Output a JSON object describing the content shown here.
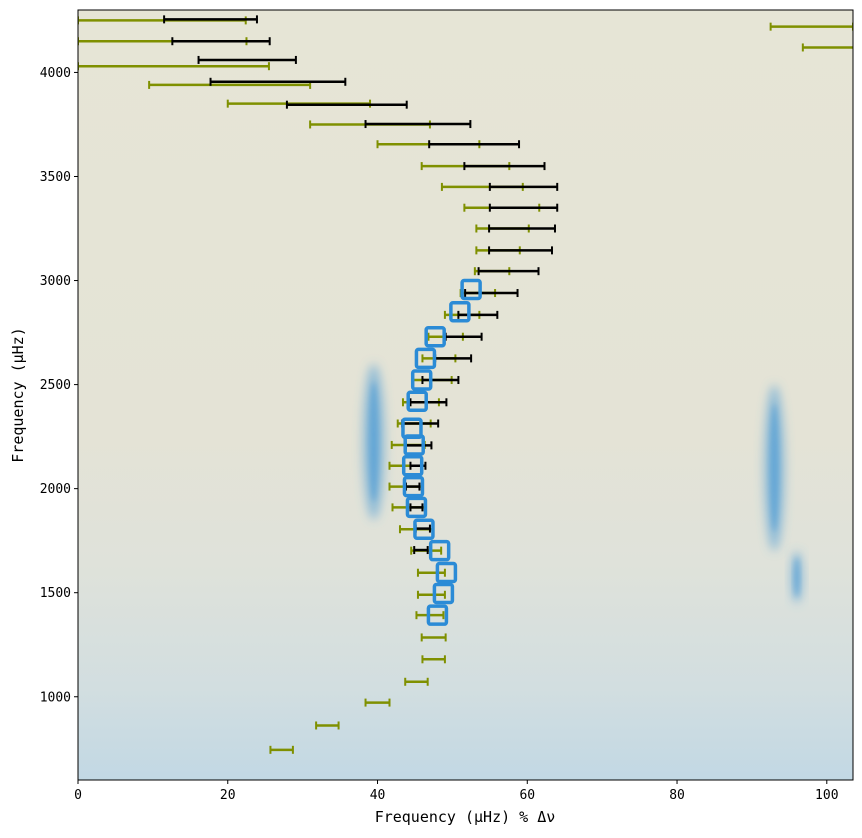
{
  "chart_data": {
    "type": "echelle",
    "xlabel": "Frequency (μHz) % Δν",
    "ylabel": "Frequency (μHz)",
    "xlim": [
      0,
      103.5
    ],
    "ylim": [
      600,
      4300
    ],
    "xticks": [
      0,
      20,
      40,
      60,
      80,
      100
    ],
    "yticks": [
      1000,
      1500,
      2000,
      2500,
      3000,
      3500,
      4000
    ],
    "colors": {
      "background": "#e6e5d6",
      "power": "#4a9ad6",
      "olive_errorbar": "#7f9000",
      "black_errorbar": "#000000",
      "box": "#2b8bd6"
    },
    "power_ridges": [
      {
        "x_center": 39.5,
        "y_range": [
          1850,
          2600
        ],
        "x_spread": 1.5
      },
      {
        "x_center": 93.0,
        "y_range": [
          1700,
          2500
        ],
        "x_spread": 1.4
      },
      {
        "x_center": 96.0,
        "y_range": [
          1450,
          1700
        ],
        "x_spread": 0.8
      }
    ],
    "olive_series": [
      {
        "x": 27.2,
        "xerr_lo": 1.5,
        "xerr_hi": 1.5,
        "y": 745
      },
      {
        "x": 33.3,
        "xerr_lo": 1.5,
        "xerr_hi": 1.5,
        "y": 862
      },
      {
        "x": 40.0,
        "xerr_lo": 1.6,
        "xerr_hi": 1.6,
        "y": 972
      },
      {
        "x": 45.2,
        "xerr_lo": 1.5,
        "xerr_hi": 1.5,
        "y": 1072
      },
      {
        "x": 47.5,
        "xerr_lo": 1.5,
        "xerr_hi": 1.5,
        "y": 1180
      },
      {
        "x": 47.5,
        "xerr_lo": 1.6,
        "xerr_hi": 1.6,
        "y": 1285
      },
      {
        "x": 47.0,
        "xerr_lo": 1.8,
        "xerr_hi": 1.8,
        "y": 1392
      },
      {
        "x": 47.2,
        "xerr_lo": 1.8,
        "xerr_hi": 1.8,
        "y": 1490
      },
      {
        "x": 47.2,
        "xerr_lo": 1.8,
        "xerr_hi": 1.8,
        "y": 1596
      },
      {
        "x": 46.5,
        "xerr_lo": 2.0,
        "xerr_hi": 2.0,
        "y": 1702
      },
      {
        "x": 45.2,
        "xerr_lo": 2.2,
        "xerr_hi": 2.2,
        "y": 1805
      },
      {
        "x": 44.2,
        "xerr_lo": 2.2,
        "xerr_hi": 2.2,
        "y": 1910
      },
      {
        "x": 43.8,
        "xerr_lo": 2.2,
        "xerr_hi": 2.2,
        "y": 2010
      },
      {
        "x": 43.8,
        "xerr_lo": 2.2,
        "xerr_hi": 2.2,
        "y": 2110
      },
      {
        "x": 44.1,
        "xerr_lo": 2.2,
        "xerr_hi": 2.2,
        "y": 2210
      },
      {
        "x": 44.9,
        "xerr_lo": 2.2,
        "xerr_hi": 2.2,
        "y": 2313
      },
      {
        "x": 45.8,
        "xerr_lo": 2.4,
        "xerr_hi": 2.4,
        "y": 2415
      },
      {
        "x": 47.3,
        "xerr_lo": 2.6,
        "xerr_hi": 2.6,
        "y": 2522
      },
      {
        "x": 48.2,
        "xerr_lo": 2.2,
        "xerr_hi": 2.2,
        "y": 2626
      },
      {
        "x": 49.1,
        "xerr_lo": 2.3,
        "xerr_hi": 2.3,
        "y": 2730
      },
      {
        "x": 51.3,
        "xerr_lo": 2.3,
        "xerr_hi": 2.3,
        "y": 2835
      },
      {
        "x": 53.4,
        "xerr_lo": 2.3,
        "xerr_hi": 2.3,
        "y": 2940
      },
      {
        "x": 55.3,
        "xerr_lo": 2.3,
        "xerr_hi": 2.3,
        "y": 3045
      },
      {
        "x": 56.1,
        "xerr_lo": 2.9,
        "xerr_hi": 2.9,
        "y": 3145
      },
      {
        "x": 56.7,
        "xerr_lo": 3.5,
        "xerr_hi": 3.5,
        "y": 3250
      },
      {
        "x": 56.6,
        "xerr_lo": 5.0,
        "xerr_hi": 5.0,
        "y": 3350
      },
      {
        "x": 56.8,
        "xerr_lo": 8.2,
        "xerr_hi": 2.6,
        "y": 3450
      },
      {
        "x": 57.0,
        "xerr_lo": 11.1,
        "xerr_hi": 0.6,
        "y": 3550
      },
      {
        "x": 47.0,
        "xerr_lo": 7.0,
        "xerr_hi": 6.6,
        "y": 3655
      },
      {
        "x": 42.0,
        "xerr_lo": 11.0,
        "xerr_hi": 5.0,
        "y": 3750
      },
      {
        "x": 30.0,
        "xerr_lo": 10.0,
        "xerr_hi": 9.0,
        "y": 3850
      },
      {
        "x": 20.0,
        "xerr_lo": 10.5,
        "xerr_hi": 11.0,
        "y": 3940
      },
      {
        "x": 13.0,
        "xerr_lo": 13.0,
        "xerr_hi": 12.5,
        "y": 4030
      },
      {
        "x": 11.5,
        "xerr_lo": 11.5,
        "xerr_hi": 11.0,
        "y": 4150
      },
      {
        "x": 11.2,
        "xerr_lo": 11.2,
        "xerr_hi": 11.2,
        "y": 4250
      },
      {
        "x": 98.0,
        "xerr_lo": 5.5,
        "xerr_hi": 5.5,
        "y": 4220
      },
      {
        "x": 100.3,
        "xerr_lo": 3.5,
        "xerr_hi": 3.5,
        "y": 4120
      }
    ],
    "black_series": [
      {
        "x": 45.8,
        "xerr_lo": 0.9,
        "xerr_hi": 0.9,
        "y": 1705
      },
      {
        "x": 46.0,
        "xerr_lo": 0.9,
        "xerr_hi": 1.0,
        "y": 1808
      },
      {
        "x": 45.2,
        "xerr_lo": 0.8,
        "xerr_hi": 0.8,
        "y": 1910
      },
      {
        "x": 44.7,
        "xerr_lo": 0.9,
        "xerr_hi": 0.9,
        "y": 2010
      },
      {
        "x": 45.4,
        "xerr_lo": 1.0,
        "xerr_hi": 1.0,
        "y": 2110
      },
      {
        "x": 45.5,
        "xerr_lo": 1.7,
        "xerr_hi": 1.7,
        "y": 2208
      },
      {
        "x": 45.7,
        "xerr_lo": 2.4,
        "xerr_hi": 2.4,
        "y": 2313
      },
      {
        "x": 46.8,
        "xerr_lo": 2.4,
        "xerr_hi": 2.4,
        "y": 2415
      },
      {
        "x": 48.4,
        "xerr_lo": 2.4,
        "xerr_hi": 2.4,
        "y": 2522
      },
      {
        "x": 50.1,
        "xerr_lo": 2.4,
        "xerr_hi": 2.4,
        "y": 2626
      },
      {
        "x": 51.5,
        "xerr_lo": 2.4,
        "xerr_hi": 2.4,
        "y": 2730
      },
      {
        "x": 53.4,
        "xerr_lo": 2.6,
        "xerr_hi": 2.6,
        "y": 2835
      },
      {
        "x": 55.2,
        "xerr_lo": 3.5,
        "xerr_hi": 3.5,
        "y": 2940
      },
      {
        "x": 57.5,
        "xerr_lo": 4.0,
        "xerr_hi": 4.0,
        "y": 3045
      },
      {
        "x": 59.1,
        "xerr_lo": 4.2,
        "xerr_hi": 4.2,
        "y": 3145
      },
      {
        "x": 59.3,
        "xerr_lo": 4.4,
        "xerr_hi": 4.4,
        "y": 3250
      },
      {
        "x": 59.5,
        "xerr_lo": 4.5,
        "xerr_hi": 4.5,
        "y": 3350
      },
      {
        "x": 59.5,
        "xerr_lo": 4.5,
        "xerr_hi": 4.5,
        "y": 3450
      },
      {
        "x": 56.9,
        "xerr_lo": 5.3,
        "xerr_hi": 5.4,
        "y": 3550
      },
      {
        "x": 52.9,
        "xerr_lo": 6.0,
        "xerr_hi": 6.0,
        "y": 3655
      },
      {
        "x": 45.4,
        "xerr_lo": 7.0,
        "xerr_hi": 7.0,
        "y": 3752
      },
      {
        "x": 35.9,
        "xerr_lo": 8.0,
        "xerr_hi": 8.0,
        "y": 3845
      },
      {
        "x": 26.7,
        "xerr_lo": 9.0,
        "xerr_hi": 9.0,
        "y": 3955
      },
      {
        "x": 22.6,
        "xerr_lo": 6.5,
        "xerr_hi": 6.5,
        "y": 4060
      },
      {
        "x": 19.1,
        "xerr_lo": 6.5,
        "xerr_hi": 6.5,
        "y": 4150
      },
      {
        "x": 17.7,
        "xerr_lo": 6.2,
        "xerr_hi": 6.2,
        "y": 4255
      }
    ],
    "boxes": [
      {
        "x": 48.0,
        "y": 1392
      },
      {
        "x": 48.8,
        "y": 1496
      },
      {
        "x": 49.2,
        "y": 1597
      },
      {
        "x": 48.3,
        "y": 1702
      },
      {
        "x": 46.2,
        "y": 1805
      },
      {
        "x": 45.2,
        "y": 1910
      },
      {
        "x": 44.8,
        "y": 2010
      },
      {
        "x": 44.7,
        "y": 2110
      },
      {
        "x": 44.9,
        "y": 2210
      },
      {
        "x": 44.6,
        "y": 2290
      },
      {
        "x": 45.3,
        "y": 2420
      },
      {
        "x": 45.9,
        "y": 2522
      },
      {
        "x": 46.4,
        "y": 2626
      },
      {
        "x": 47.7,
        "y": 2730
      },
      {
        "x": 51.0,
        "y": 2850
      },
      {
        "x": 52.5,
        "y": 2957
      }
    ]
  }
}
